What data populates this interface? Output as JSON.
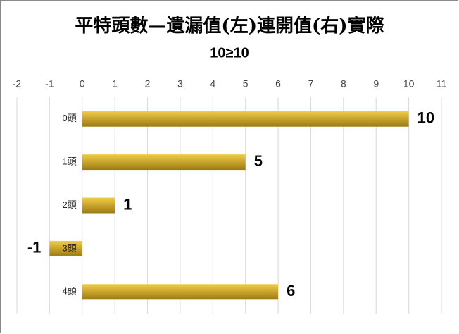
{
  "chart_data": {
    "type": "bar",
    "orientation": "horizontal",
    "title": "平特頭數—遺漏值(左)連開值(右)實際",
    "subtitle": "10≥10",
    "categories": [
      "0頭",
      "1頭",
      "2頭",
      "3頭",
      "4頭"
    ],
    "values": [
      10,
      5,
      1,
      -1,
      6
    ],
    "color": "#f2cc48",
    "xlim": [
      -2,
      11
    ],
    "xticks": [
      -2,
      -1,
      0,
      1,
      2,
      3,
      4,
      5,
      6,
      7,
      8,
      9,
      10,
      11
    ],
    "grid": true
  }
}
